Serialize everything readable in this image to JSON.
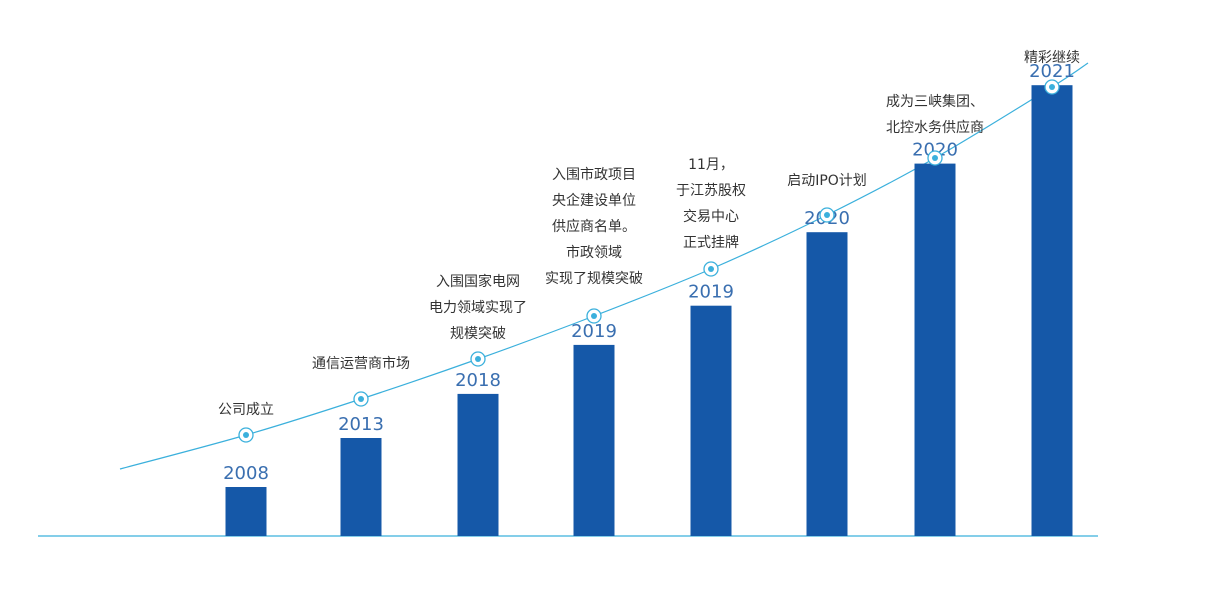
{
  "colors": {
    "bar": "#1558a8",
    "curve": "#3bb0dc",
    "baseline": "#3bb0dc",
    "year_text": "#3a6fb0",
    "milestone_text": "#333333"
  },
  "chart_data": {
    "type": "bar",
    "title": "",
    "xlabel": "",
    "ylabel": "",
    "categories": [
      "2008",
      "2013",
      "2018",
      "2019",
      "2019",
      "2020",
      "2020",
      "2021"
    ],
    "values": [
      1,
      2,
      2.9,
      3.9,
      4.7,
      6.2,
      7.6,
      9.2
    ],
    "ylim": [
      0,
      10
    ],
    "grid": false,
    "trend_line": true,
    "milestones": [
      [
        "公司成立"
      ],
      [
        "通信运营商市场"
      ],
      [
        "入围国家电网",
        "电力领域实现了",
        "规模突破"
      ],
      [
        "入围市政项目",
        "央企建设单位",
        "供应商名单。",
        "市政领域",
        "实现了规模突破"
      ],
      [
        "11月，",
        "于江苏股权",
        "交易中心",
        "正式挂牌"
      ],
      [
        "启动IPO计划"
      ],
      [
        "成为三峡集团、",
        "北控水务供应商"
      ],
      [
        "精彩继续"
      ]
    ]
  }
}
